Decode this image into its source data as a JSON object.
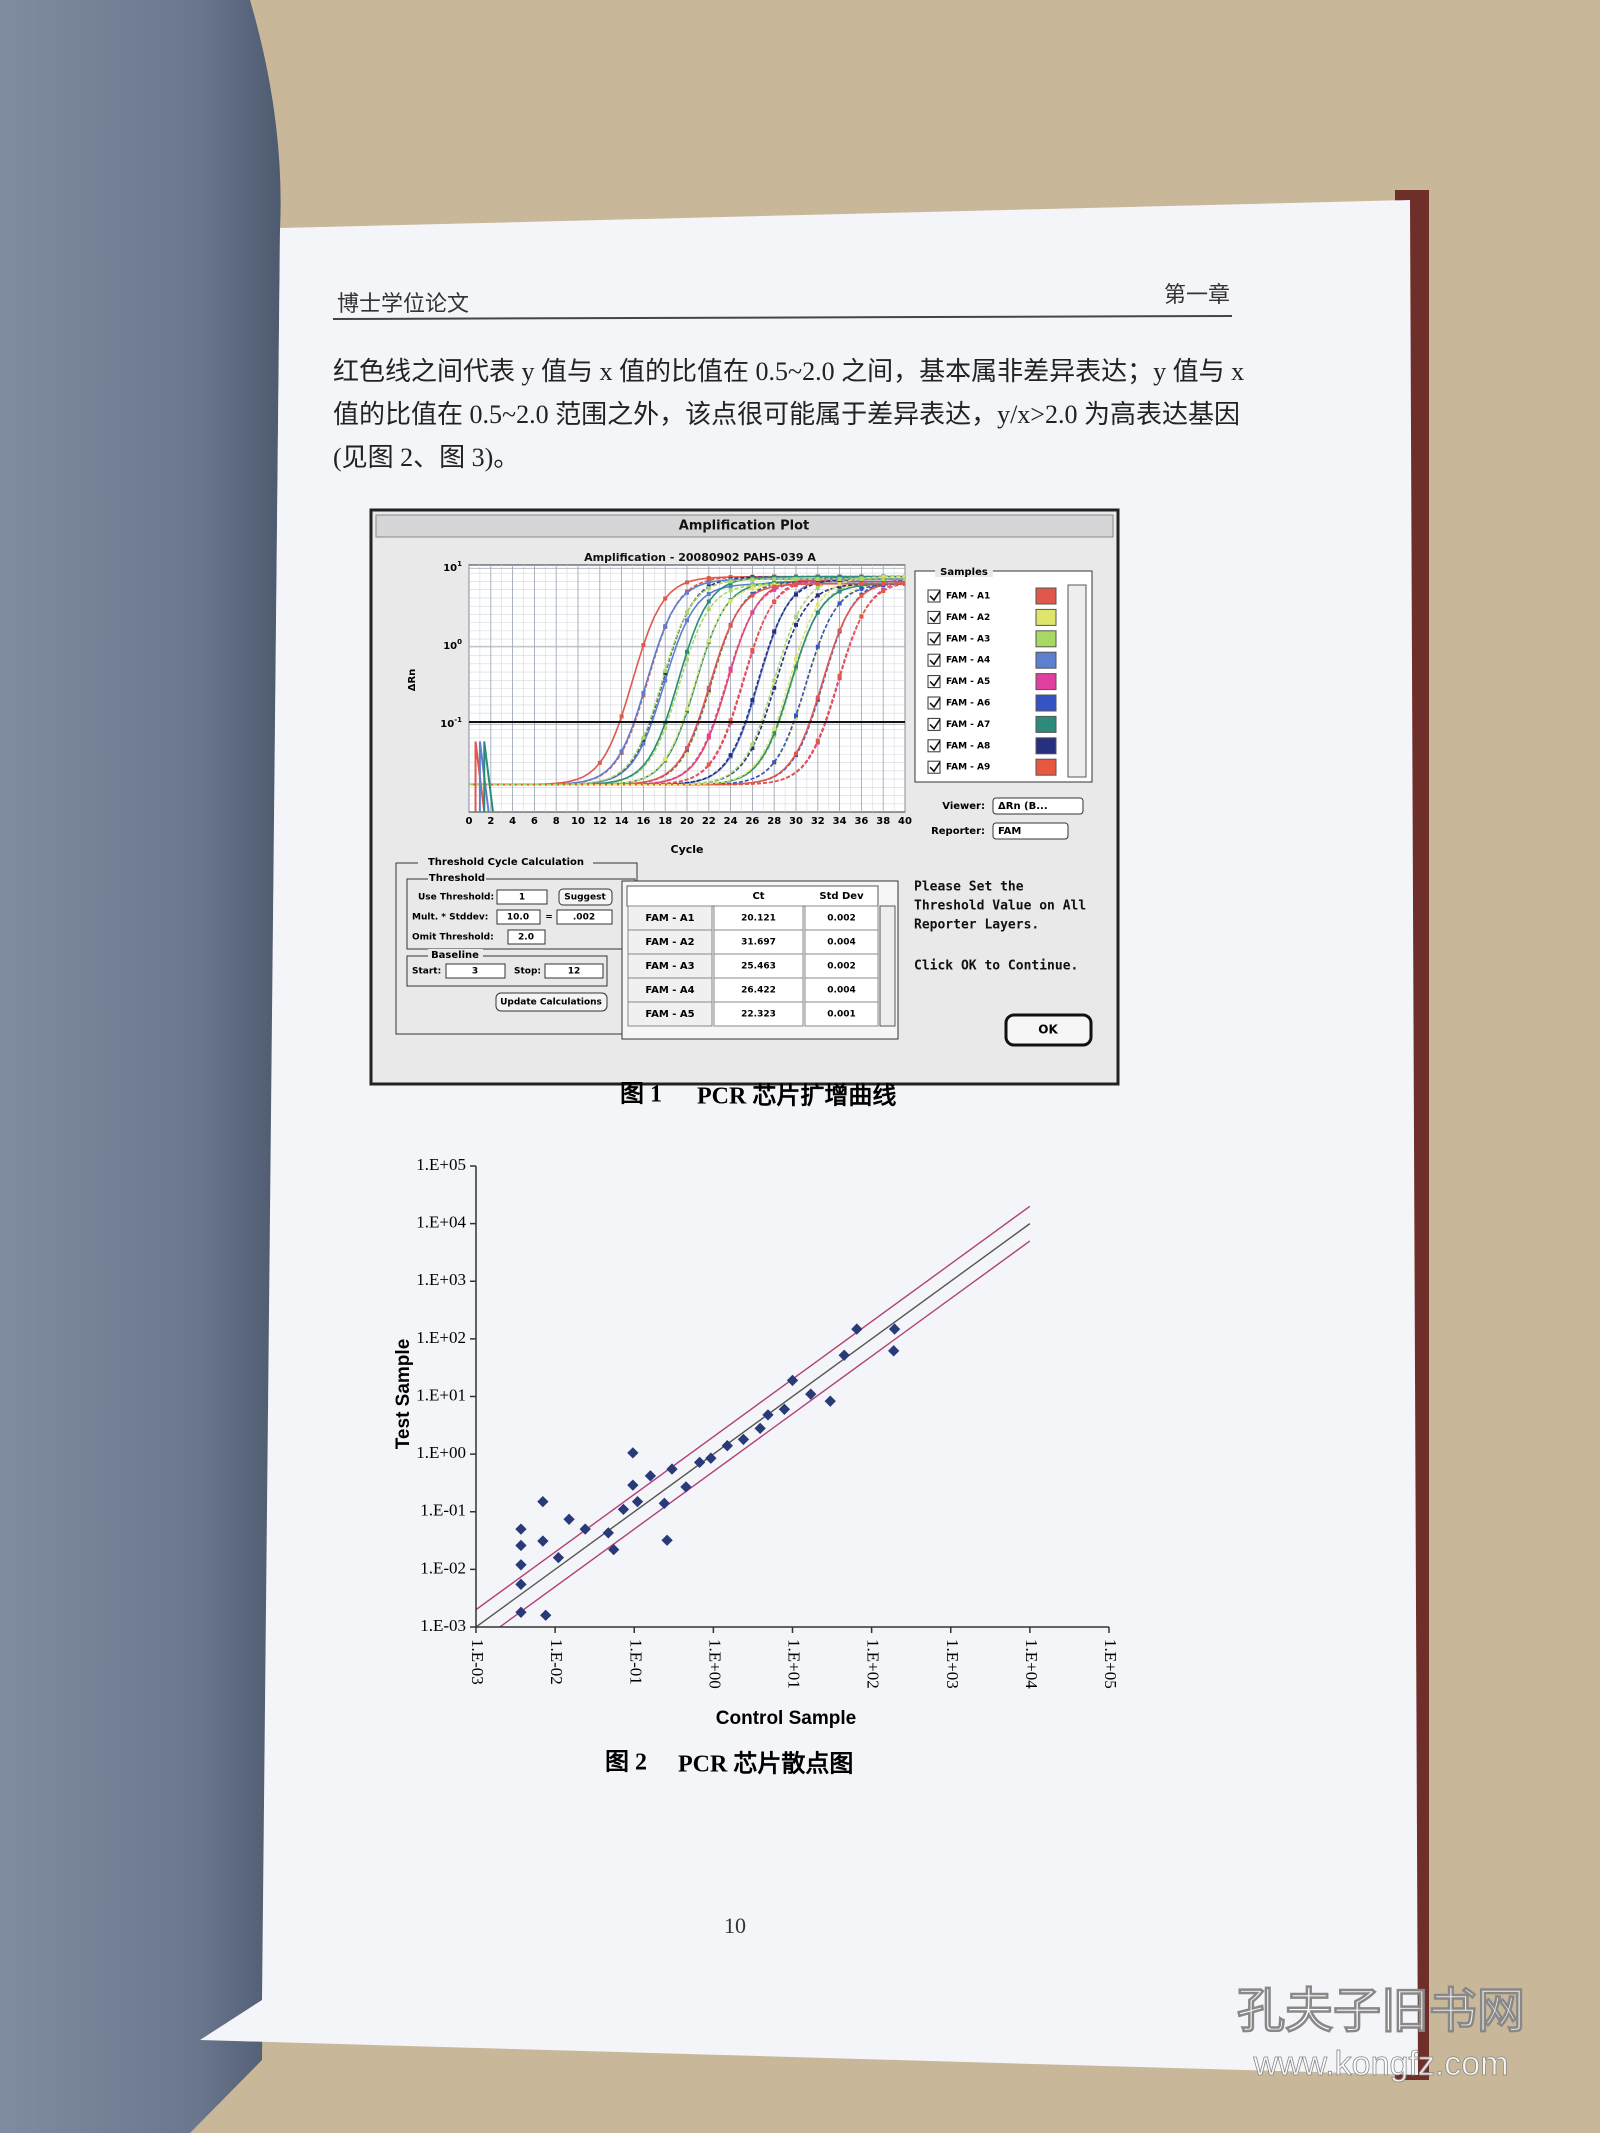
{
  "header": {
    "left": "博士学位论文",
    "right": "第一章"
  },
  "body": {
    "lines": [
      "红色线之间代表 y 值与 x 值的比值在 0.5~2.0 之间，基本属非差异表达；y 值与 x",
      "值的比值在 0.5~2.0 范围之外，该点很可能属于差异表达，y/x>2.0 为高表达基因",
      "(见图 2、图 3)。"
    ]
  },
  "figure1": {
    "window_title": "Amplification Plot",
    "plot_title": "Amplification - 20080902 PAHS-039 A",
    "x_label": "Cycle",
    "y_label": "ΔRn",
    "xlim": [
      0,
      40
    ],
    "xticks": [
      0,
      2,
      4,
      6,
      8,
      10,
      12,
      14,
      16,
      18,
      20,
      22,
      24,
      26,
      28,
      30,
      32,
      34,
      36,
      38,
      40
    ],
    "log_scale": true,
    "ylim": [
      0.0075,
      11
    ],
    "yticks": [
      {
        "value": 10,
        "label": "10",
        "exponent": "1"
      },
      {
        "value": 1,
        "label": "10",
        "exponent": "0"
      },
      {
        "value": 0.1,
        "label": "10",
        "exponent": "-1"
      }
    ],
    "grid": true,
    "samples_title": "Samples",
    "samples": [
      {
        "name": "FAM - A1",
        "color": "#e0574c"
      },
      {
        "name": "FAM - A2",
        "color": "#dfe56a"
      },
      {
        "name": "FAM - A3",
        "color": "#a8d864"
      },
      {
        "name": "FAM - A4",
        "color": "#5d7fd0"
      },
      {
        "name": "FAM - A5",
        "color": "#e03f9e"
      },
      {
        "name": "FAM - A6",
        "color": "#3553c2"
      },
      {
        "name": "FAM - A7",
        "color": "#2c8b79"
      },
      {
        "name": "FAM - A8",
        "color": "#26307e"
      },
      {
        "name": "FAM - A9",
        "color": "#e6583f"
      }
    ],
    "viewer_label": "Viewer:",
    "viewer_value": "ΔRn (B...",
    "reporter_label": "Reporter:",
    "reporter_value": "FAM",
    "threshold_group": "Threshold Cycle Calculation",
    "threshold_title": "Threshold",
    "use_threshold_label": "Use Threshold:",
    "use_threshold_value": "1",
    "suggest_button": "Suggest",
    "mult_label": "Mult. * Stddev:",
    "mult_value": "10.0",
    "equals": "=",
    "mult_result": ".002",
    "omit_label": "Omit Threshold:",
    "omit_value": "2.0",
    "baseline_title": "Baseline",
    "start_label": "Start:",
    "start_value": "3",
    "stop_label": "Stop:",
    "stop_value": "12",
    "update_button": "Update Calculations",
    "table": {
      "columns": [
        "Ct",
        "Std Dev"
      ],
      "rows": [
        [
          "FAM - A1",
          "20.121",
          "0.002"
        ],
        [
          "FAM - A2",
          "31.697",
          "0.004"
        ],
        [
          "FAM - A3",
          "25.463",
          "0.002"
        ],
        [
          "FAM - A4",
          "26.422",
          "0.004"
        ],
        [
          "FAM - A5",
          "22.323",
          "0.001"
        ]
      ]
    },
    "message": [
      "Please Set the",
      "Threshold Value on All",
      "Reporter Layers."
    ],
    "message2": "Click OK to Continue.",
    "ok_button": "OK",
    "caption_number": "图 1",
    "caption_text": "PCR 芯片扩增曲线"
  },
  "figure2": {
    "type": "scatter",
    "x_label": "Control Sample",
    "y_label": "Test Sample",
    "log_scale": true,
    "xlim": [
      0.001,
      100000
    ],
    "ylim": [
      0.001,
      100000
    ],
    "xticks": [
      {
        "value": 0.001,
        "label": "1.E-03"
      },
      {
        "value": 0.01,
        "label": "1.E-02"
      },
      {
        "value": 0.1,
        "label": "1.E-01"
      },
      {
        "value": 1,
        "label": "1.E+00"
      },
      {
        "value": 10,
        "label": "1.E+01"
      },
      {
        "value": 100,
        "label": "1.E+02"
      },
      {
        "value": 1000,
        "label": "1.E+03"
      },
      {
        "value": 10000,
        "label": "1.E+04"
      },
      {
        "value": 100000,
        "label": "1.E+05"
      }
    ],
    "yticks": [
      {
        "value": 0.001,
        "label": "1.E-03"
      },
      {
        "value": 0.01,
        "label": "1.E-02"
      },
      {
        "value": 0.1,
        "label": "1.E-01"
      },
      {
        "value": 1,
        "label": "1.E+00"
      },
      {
        "value": 10,
        "label": "1.E+01"
      },
      {
        "value": 100,
        "label": "1.E+02"
      },
      {
        "value": 1000,
        "label": "1.E+03"
      },
      {
        "value": 10000,
        "label": "1.E+04"
      },
      {
        "value": 100000,
        "label": "1.E+05"
      }
    ],
    "x": [
      0.0037,
      0.0037,
      0.0037,
      0.0037,
      0.0037,
      0.007,
      0.007,
      0.0076,
      0.011,
      0.015,
      0.024,
      0.047,
      0.055,
      0.073,
      0.096,
      0.096,
      0.11,
      0.16,
      0.24,
      0.26,
      0.3,
      0.45,
      0.67,
      0.93,
      1.5,
      2.4,
      3.9,
      4.9,
      7.9,
      10,
      17,
      30,
      45,
      65,
      190,
      195
    ],
    "y": [
      0.05,
      0.026,
      0.012,
      0.0055,
      0.0018,
      0.15,
      0.031,
      0.0016,
      0.016,
      0.074,
      0.05,
      0.043,
      0.022,
      0.11,
      1.05,
      0.29,
      0.15,
      0.42,
      0.14,
      0.032,
      0.55,
      0.27,
      0.72,
      0.85,
      1.4,
      1.8,
      2.8,
      4.8,
      6.0,
      19,
      11,
      8.3,
      52,
      148,
      62,
      148
    ],
    "color": "#283a78",
    "reference_lines": [
      {
        "ratio": 2,
        "color": "#b0407c"
      },
      {
        "ratio": 1,
        "color": "#555555"
      },
      {
        "ratio": 0.5,
        "color": "#b0407c"
      }
    ],
    "caption_number": "图 2",
    "caption_text": "PCR 芯片散点图"
  },
  "page_number": "10",
  "watermark": {
    "logo": "孔夫子旧书网",
    "url": "www.kongfz.com"
  }
}
